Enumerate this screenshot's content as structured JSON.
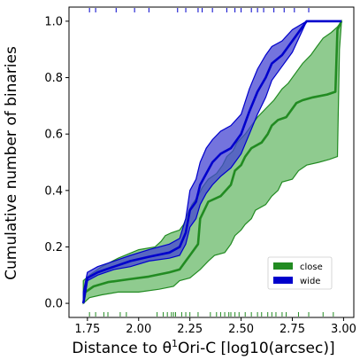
{
  "chart_data": {
    "type": "line",
    "xlabel_pre": "Distance to θ",
    "xlabel_sup": "1",
    "xlabel_post": "Ori-C [log10(arcsec)]",
    "ylabel": "Cumulative number of binaries",
    "xlim": [
      1.66,
      3.05
    ],
    "ylim": [
      -0.05,
      1.05
    ],
    "x_ticks": [
      1.75,
      2.0,
      2.25,
      2.5,
      2.75,
      3.0
    ],
    "x_tick_labels": [
      "1.75",
      "2.00",
      "2.25",
      "2.50",
      "2.75",
      "3.00"
    ],
    "y_ticks": [
      0.0,
      0.2,
      0.4,
      0.6,
      0.8,
      1.0
    ],
    "y_tick_labels": [
      "0.0",
      "0.2",
      "0.4",
      "0.6",
      "0.8",
      "1.0"
    ],
    "legend_position": "lower-right",
    "series": [
      {
        "name": "close",
        "color": "#228b22",
        "fill": "#6aba6a",
        "line": [
          [
            1.73,
            0.0
          ],
          [
            1.74,
            0.04
          ],
          [
            1.78,
            0.06
          ],
          [
            1.85,
            0.075
          ],
          [
            1.95,
            0.085
          ],
          [
            2.05,
            0.095
          ],
          [
            2.15,
            0.11
          ],
          [
            2.2,
            0.12
          ],
          [
            2.22,
            0.14
          ],
          [
            2.25,
            0.17
          ],
          [
            2.29,
            0.21
          ],
          [
            2.3,
            0.3
          ],
          [
            2.32,
            0.33
          ],
          [
            2.34,
            0.36
          ],
          [
            2.4,
            0.38
          ],
          [
            2.45,
            0.42
          ],
          [
            2.47,
            0.47
          ],
          [
            2.5,
            0.49
          ],
          [
            2.52,
            0.52
          ],
          [
            2.55,
            0.55
          ],
          [
            2.6,
            0.57
          ],
          [
            2.63,
            0.6
          ],
          [
            2.65,
            0.63
          ],
          [
            2.68,
            0.65
          ],
          [
            2.72,
            0.66
          ],
          [
            2.74,
            0.68
          ],
          [
            2.77,
            0.71
          ],
          [
            2.8,
            0.72
          ],
          [
            2.85,
            0.73
          ],
          [
            2.92,
            0.74
          ],
          [
            2.96,
            0.75
          ],
          [
            2.97,
            0.97
          ],
          [
            2.99,
            1.0
          ]
        ],
        "upper": [
          [
            1.73,
            0.08
          ],
          [
            1.76,
            0.1
          ],
          [
            1.82,
            0.13
          ],
          [
            1.9,
            0.16
          ],
          [
            2.0,
            0.19
          ],
          [
            2.08,
            0.2
          ],
          [
            2.11,
            0.22
          ],
          [
            2.13,
            0.24
          ],
          [
            2.16,
            0.25
          ],
          [
            2.2,
            0.26
          ],
          [
            2.22,
            0.28
          ],
          [
            2.24,
            0.32
          ],
          [
            2.26,
            0.35
          ],
          [
            2.29,
            0.38
          ],
          [
            2.31,
            0.41
          ],
          [
            2.34,
            0.44
          ],
          [
            2.38,
            0.46
          ],
          [
            2.41,
            0.49
          ],
          [
            2.43,
            0.52
          ],
          [
            2.46,
            0.54
          ],
          [
            2.48,
            0.57
          ],
          [
            2.52,
            0.6
          ],
          [
            2.55,
            0.63
          ],
          [
            2.58,
            0.66
          ],
          [
            2.62,
            0.69
          ],
          [
            2.66,
            0.72
          ],
          [
            2.7,
            0.76
          ],
          [
            2.73,
            0.78
          ],
          [
            2.77,
            0.82
          ],
          [
            2.8,
            0.85
          ],
          [
            2.84,
            0.88
          ],
          [
            2.87,
            0.91
          ],
          [
            2.9,
            0.94
          ],
          [
            2.94,
            0.96
          ],
          [
            2.97,
            0.98
          ],
          [
            2.99,
            1.0
          ]
        ],
        "lower": [
          [
            1.73,
            0.0
          ],
          [
            1.76,
            0.02
          ],
          [
            1.82,
            0.03
          ],
          [
            1.9,
            0.04
          ],
          [
            2.0,
            0.04
          ],
          [
            2.1,
            0.05
          ],
          [
            2.17,
            0.06
          ],
          [
            2.2,
            0.08
          ],
          [
            2.25,
            0.09
          ],
          [
            2.3,
            0.12
          ],
          [
            2.34,
            0.15
          ],
          [
            2.37,
            0.17
          ],
          [
            2.42,
            0.18
          ],
          [
            2.45,
            0.21
          ],
          [
            2.47,
            0.24
          ],
          [
            2.5,
            0.26
          ],
          [
            2.52,
            0.28
          ],
          [
            2.55,
            0.3
          ],
          [
            2.57,
            0.33
          ],
          [
            2.62,
            0.35
          ],
          [
            2.65,
            0.38
          ],
          [
            2.68,
            0.4
          ],
          [
            2.7,
            0.43
          ],
          [
            2.75,
            0.44
          ],
          [
            2.78,
            0.47
          ],
          [
            2.82,
            0.49
          ],
          [
            2.88,
            0.5
          ],
          [
            2.93,
            0.51
          ],
          [
            2.97,
            0.52
          ],
          [
            2.98,
            0.9
          ],
          [
            2.99,
            1.0
          ]
        ]
      },
      {
        "name": "wide",
        "color": "#0000cc",
        "fill": "#4646d2",
        "line": [
          [
            1.73,
            0.0
          ],
          [
            1.75,
            0.09
          ],
          [
            1.8,
            0.11
          ],
          [
            1.88,
            0.13
          ],
          [
            1.96,
            0.15
          ],
          [
            2.05,
            0.165
          ],
          [
            2.15,
            0.18
          ],
          [
            2.2,
            0.2
          ],
          [
            2.23,
            0.25
          ],
          [
            2.25,
            0.33
          ],
          [
            2.28,
            0.36
          ],
          [
            2.3,
            0.42
          ],
          [
            2.33,
            0.46
          ],
          [
            2.36,
            0.5
          ],
          [
            2.4,
            0.53
          ],
          [
            2.45,
            0.55
          ],
          [
            2.5,
            0.6
          ],
          [
            2.54,
            0.68
          ],
          [
            2.58,
            0.75
          ],
          [
            2.62,
            0.8
          ],
          [
            2.65,
            0.85
          ],
          [
            2.7,
            0.88
          ],
          [
            2.75,
            0.93
          ],
          [
            2.82,
            1.0
          ],
          [
            2.99,
            1.0
          ]
        ],
        "upper": [
          [
            1.73,
            0.04
          ],
          [
            1.75,
            0.11
          ],
          [
            1.8,
            0.13
          ],
          [
            1.88,
            0.15
          ],
          [
            1.96,
            0.17
          ],
          [
            2.05,
            0.19
          ],
          [
            2.15,
            0.21
          ],
          [
            2.2,
            0.23
          ],
          [
            2.23,
            0.3
          ],
          [
            2.25,
            0.4
          ],
          [
            2.28,
            0.44
          ],
          [
            2.3,
            0.5
          ],
          [
            2.33,
            0.55
          ],
          [
            2.36,
            0.58
          ],
          [
            2.4,
            0.61
          ],
          [
            2.45,
            0.63
          ],
          [
            2.5,
            0.67
          ],
          [
            2.54,
            0.76
          ],
          [
            2.58,
            0.83
          ],
          [
            2.62,
            0.88
          ],
          [
            2.65,
            0.91
          ],
          [
            2.7,
            0.93
          ],
          [
            2.75,
            0.97
          ],
          [
            2.82,
            1.0
          ],
          [
            2.99,
            1.0
          ]
        ],
        "lower": [
          [
            1.73,
            0.0
          ],
          [
            1.75,
            0.08
          ],
          [
            1.8,
            0.1
          ],
          [
            1.88,
            0.12
          ],
          [
            1.96,
            0.13
          ],
          [
            2.05,
            0.15
          ],
          [
            2.15,
            0.16
          ],
          [
            2.2,
            0.17
          ],
          [
            2.23,
            0.21
          ],
          [
            2.25,
            0.27
          ],
          [
            2.28,
            0.3
          ],
          [
            2.3,
            0.35
          ],
          [
            2.33,
            0.39
          ],
          [
            2.36,
            0.42
          ],
          [
            2.4,
            0.45
          ],
          [
            2.45,
            0.48
          ],
          [
            2.5,
            0.53
          ],
          [
            2.54,
            0.6
          ],
          [
            2.58,
            0.67
          ],
          [
            2.62,
            0.73
          ],
          [
            2.65,
            0.79
          ],
          [
            2.7,
            0.84
          ],
          [
            2.75,
            0.89
          ],
          [
            2.82,
            1.0
          ],
          [
            2.99,
            1.0
          ]
        ]
      }
    ],
    "rug_close": [
      1.76,
      1.79,
      1.83,
      1.85,
      1.91,
      1.94,
      2.09,
      2.12,
      2.14,
      2.16,
      2.17,
      2.18,
      2.21,
      2.23,
      2.25,
      2.29,
      2.35,
      2.38,
      2.4,
      2.42,
      2.44,
      2.45,
      2.47,
      2.49,
      2.52,
      2.55,
      2.58,
      2.6,
      2.63,
      2.65,
      2.67,
      2.7,
      2.72,
      2.78,
      2.83,
      2.9,
      2.95
    ],
    "rug_wide": [
      1.76,
      1.79,
      1.89,
      1.98,
      2.05,
      2.19,
      2.23,
      2.29,
      2.31,
      2.36,
      2.43,
      2.47,
      2.5,
      2.55,
      2.58,
      2.61,
      2.66,
      2.71,
      2.76,
      2.83
    ]
  }
}
